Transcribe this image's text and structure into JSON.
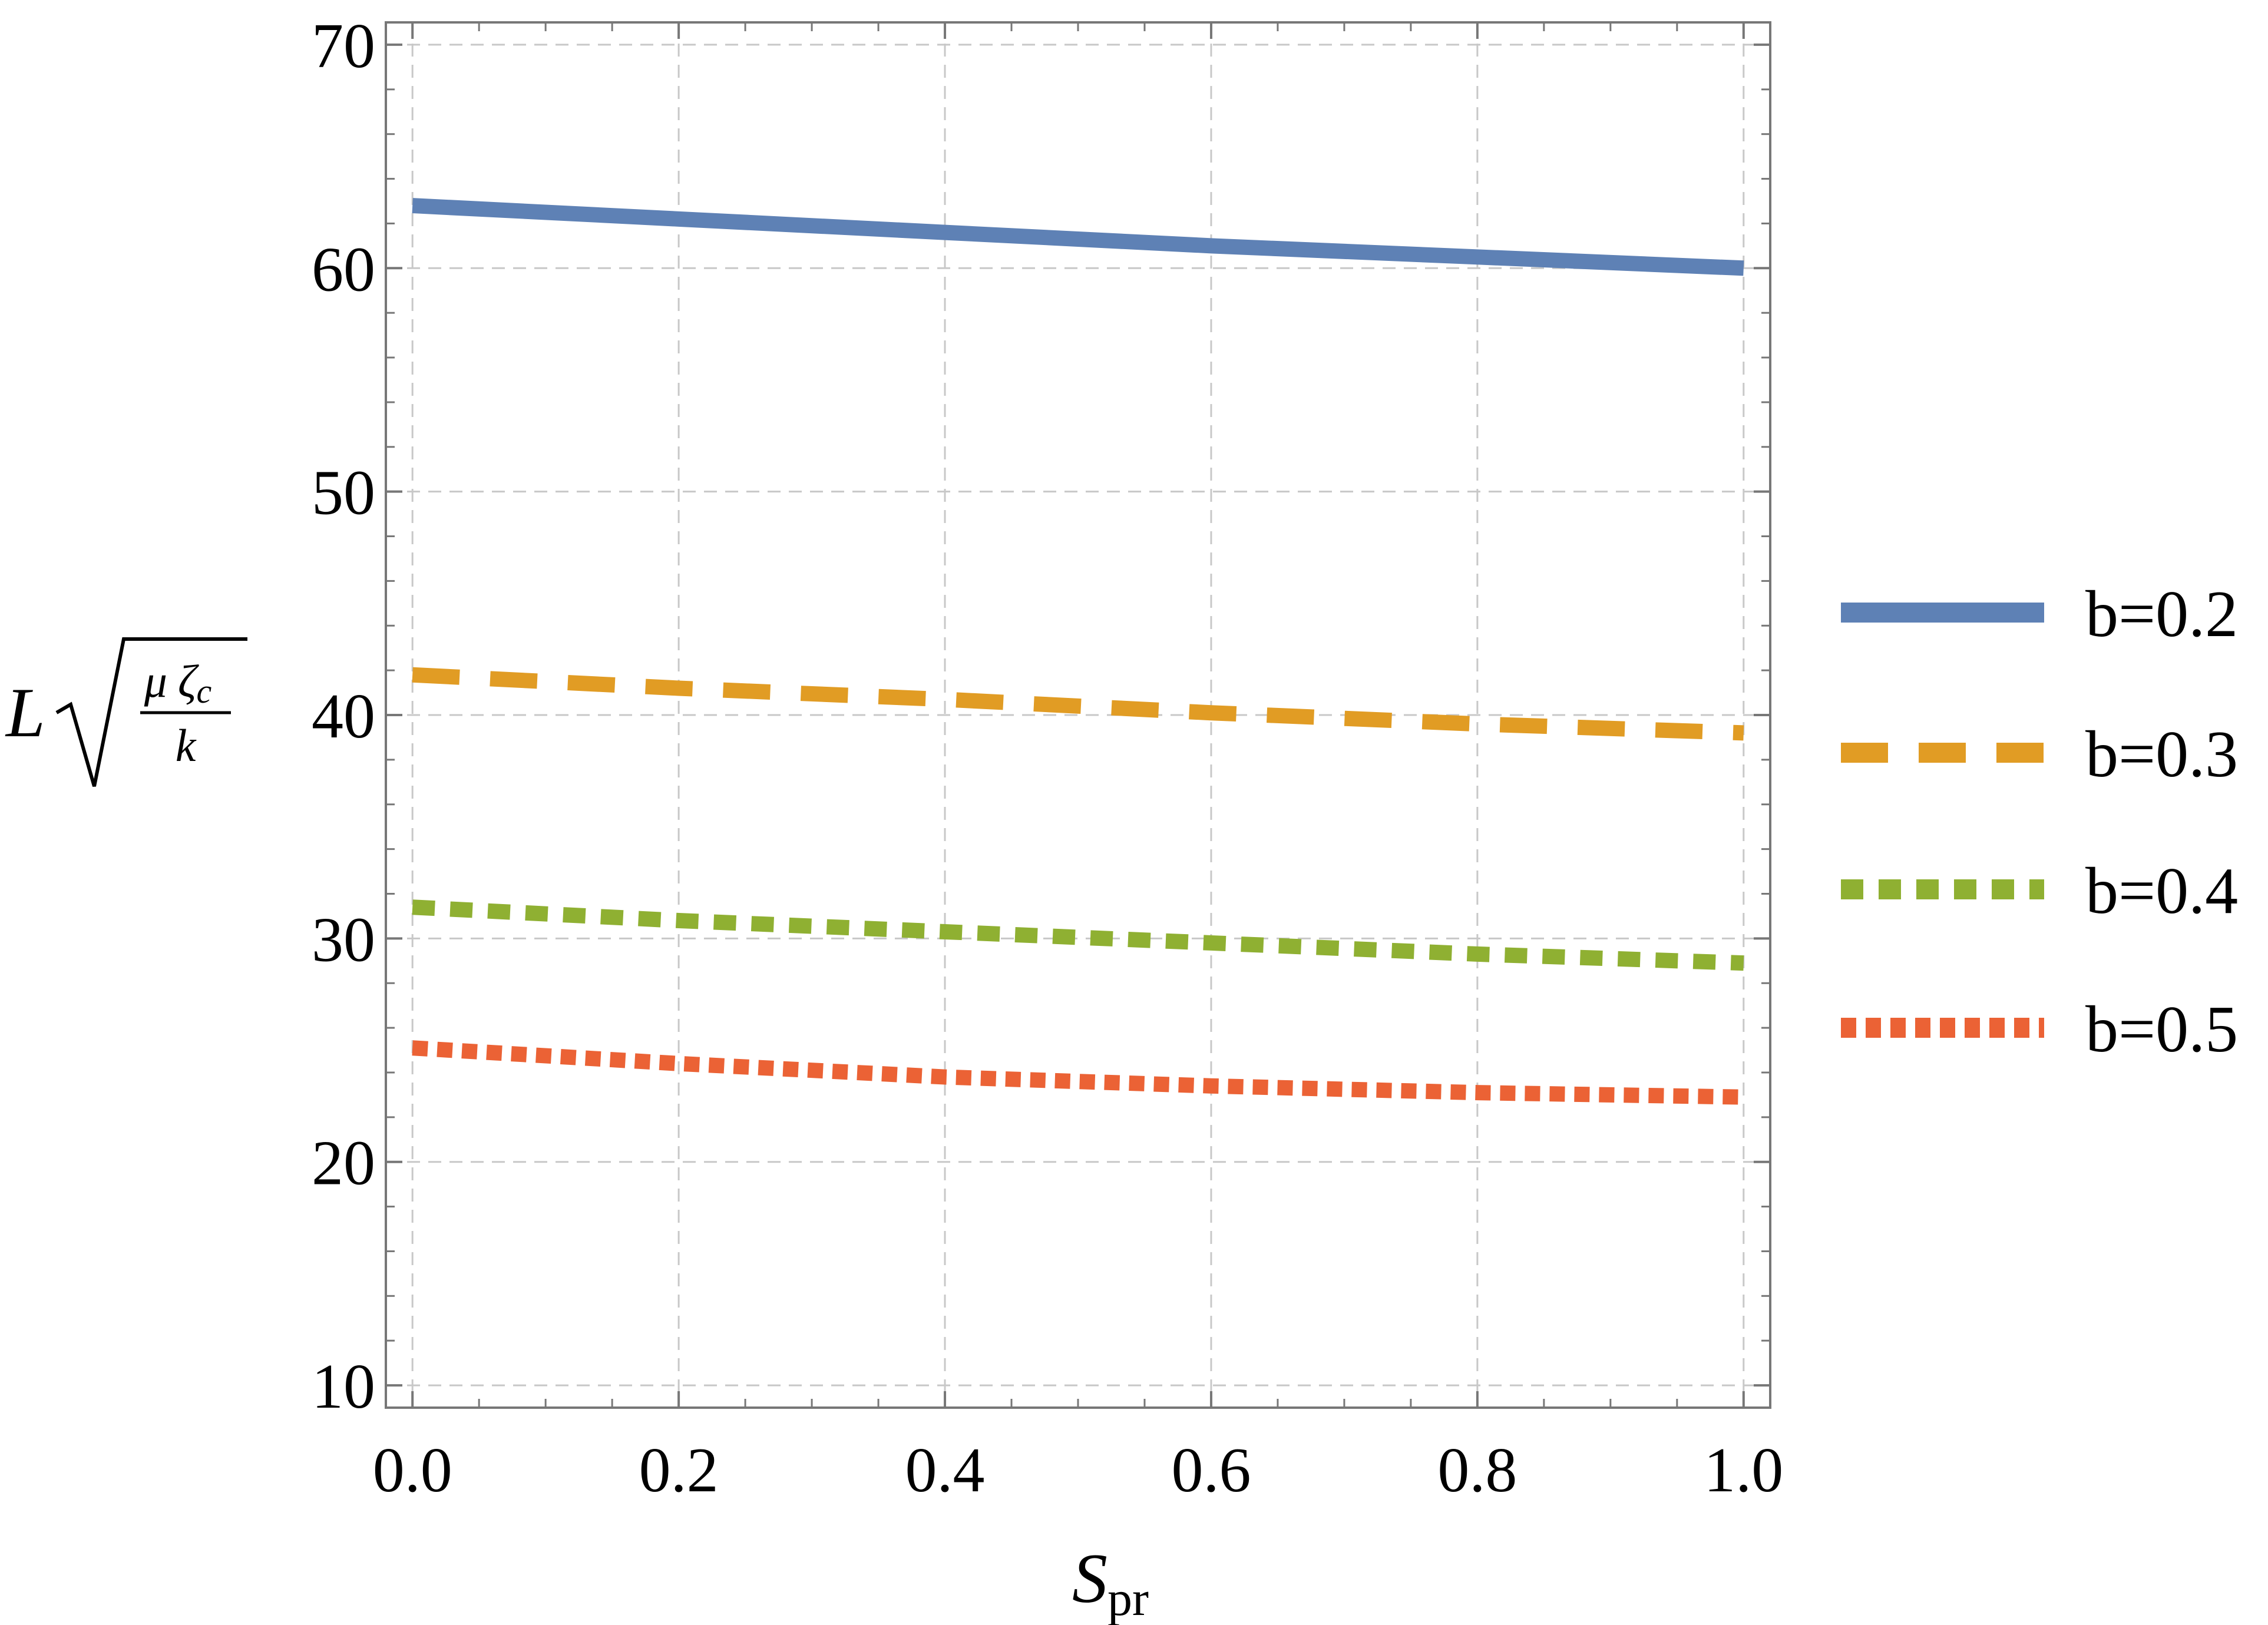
{
  "chart_data": {
    "type": "line",
    "title": "",
    "xlabel": {
      "base": "S",
      "subscript": "pr"
    },
    "ylabel": {
      "prefix": "L",
      "numerator_mu": "μ",
      "numerator_zeta": "ζ",
      "numerator_sub": "c",
      "denominator": "k"
    },
    "xlim": [
      -0.02,
      1.02
    ],
    "ylim": [
      9,
      71
    ],
    "xticks": [
      "0.0",
      "0.2",
      "0.4",
      "0.6",
      "0.8",
      "1.0"
    ],
    "yticks": [
      "10",
      "20",
      "30",
      "40",
      "50",
      "60",
      "70"
    ],
    "grid": true,
    "legend_position": "right",
    "series": [
      {
        "name": "b=0.2",
        "color": "#5e81b5",
        "style": "solid",
        "x": [
          0,
          0.2,
          0.4,
          0.6,
          0.8,
          1.0
        ],
        "y": [
          62.8,
          62.2,
          61.6,
          61.0,
          60.5,
          60.0
        ]
      },
      {
        "name": "b=0.3",
        "color": "#e19c24",
        "style": "dashed",
        "x": [
          0,
          0.2,
          0.4,
          0.6,
          0.8,
          1.0
        ],
        "y": [
          41.8,
          41.2,
          40.7,
          40.1,
          39.6,
          39.2
        ]
      },
      {
        "name": "b=0.4",
        "color": "#8fb032",
        "style": "dotted",
        "x": [
          0,
          0.2,
          0.4,
          0.6,
          0.8,
          1.0
        ],
        "y": [
          31.4,
          30.8,
          30.3,
          29.8,
          29.3,
          28.9
        ]
      },
      {
        "name": "b=0.5",
        "color": "#eb6235",
        "style": "densely-dotted",
        "x": [
          0,
          0.2,
          0.4,
          0.6,
          0.8,
          1.0
        ],
        "y": [
          25.1,
          24.4,
          23.8,
          23.4,
          23.1,
          22.9
        ]
      }
    ]
  }
}
